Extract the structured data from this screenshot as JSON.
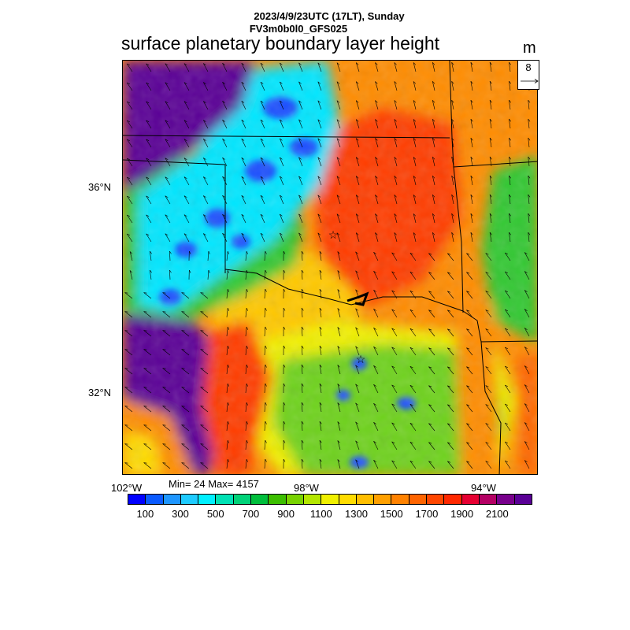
{
  "header": {
    "datetime": "2023/4/9/23UTC (17LT), Sunday",
    "run": "FV3m0b0l0_GFS025",
    "title": "surface planetary boundary layer height",
    "units": "m"
  },
  "reference_vector": {
    "value": "8"
  },
  "stats": {
    "text": "Min= 24 Max= 4157"
  },
  "axes": {
    "lat_ticks": [
      "36°N",
      "32°N"
    ],
    "lon_ticks": [
      "102°W",
      "98°W",
      "94°W"
    ]
  },
  "colorbar": {
    "colors": [
      "#0000ff",
      "#0a5aff",
      "#1e96ff",
      "#1ecbff",
      "#00f0ff",
      "#00e1b4",
      "#00d278",
      "#00be3c",
      "#3cbe00",
      "#78d200",
      "#b4e600",
      "#f0f000",
      "#ffdc00",
      "#ffbe00",
      "#ffa000",
      "#ff8200",
      "#ff6400",
      "#ff4600",
      "#ff2800",
      "#e60032",
      "#b40064",
      "#78008c",
      "#5a0096"
    ],
    "labels": [
      "100",
      "300",
      "500",
      "700",
      "900",
      "1100",
      "1300",
      "1500",
      "1700",
      "1900",
      "2100"
    ]
  },
  "map": {
    "markers": [
      "star",
      "star"
    ],
    "legend_colors": {
      "deep_low": "#1e50ff",
      "low": "#00e6ff",
      "mid_green": "#32c832",
      "mid_yellow": "#f0f000",
      "high_orange": "#ff8c00",
      "high_red": "#ff3c00",
      "very_high": "#5a0096"
    }
  }
}
